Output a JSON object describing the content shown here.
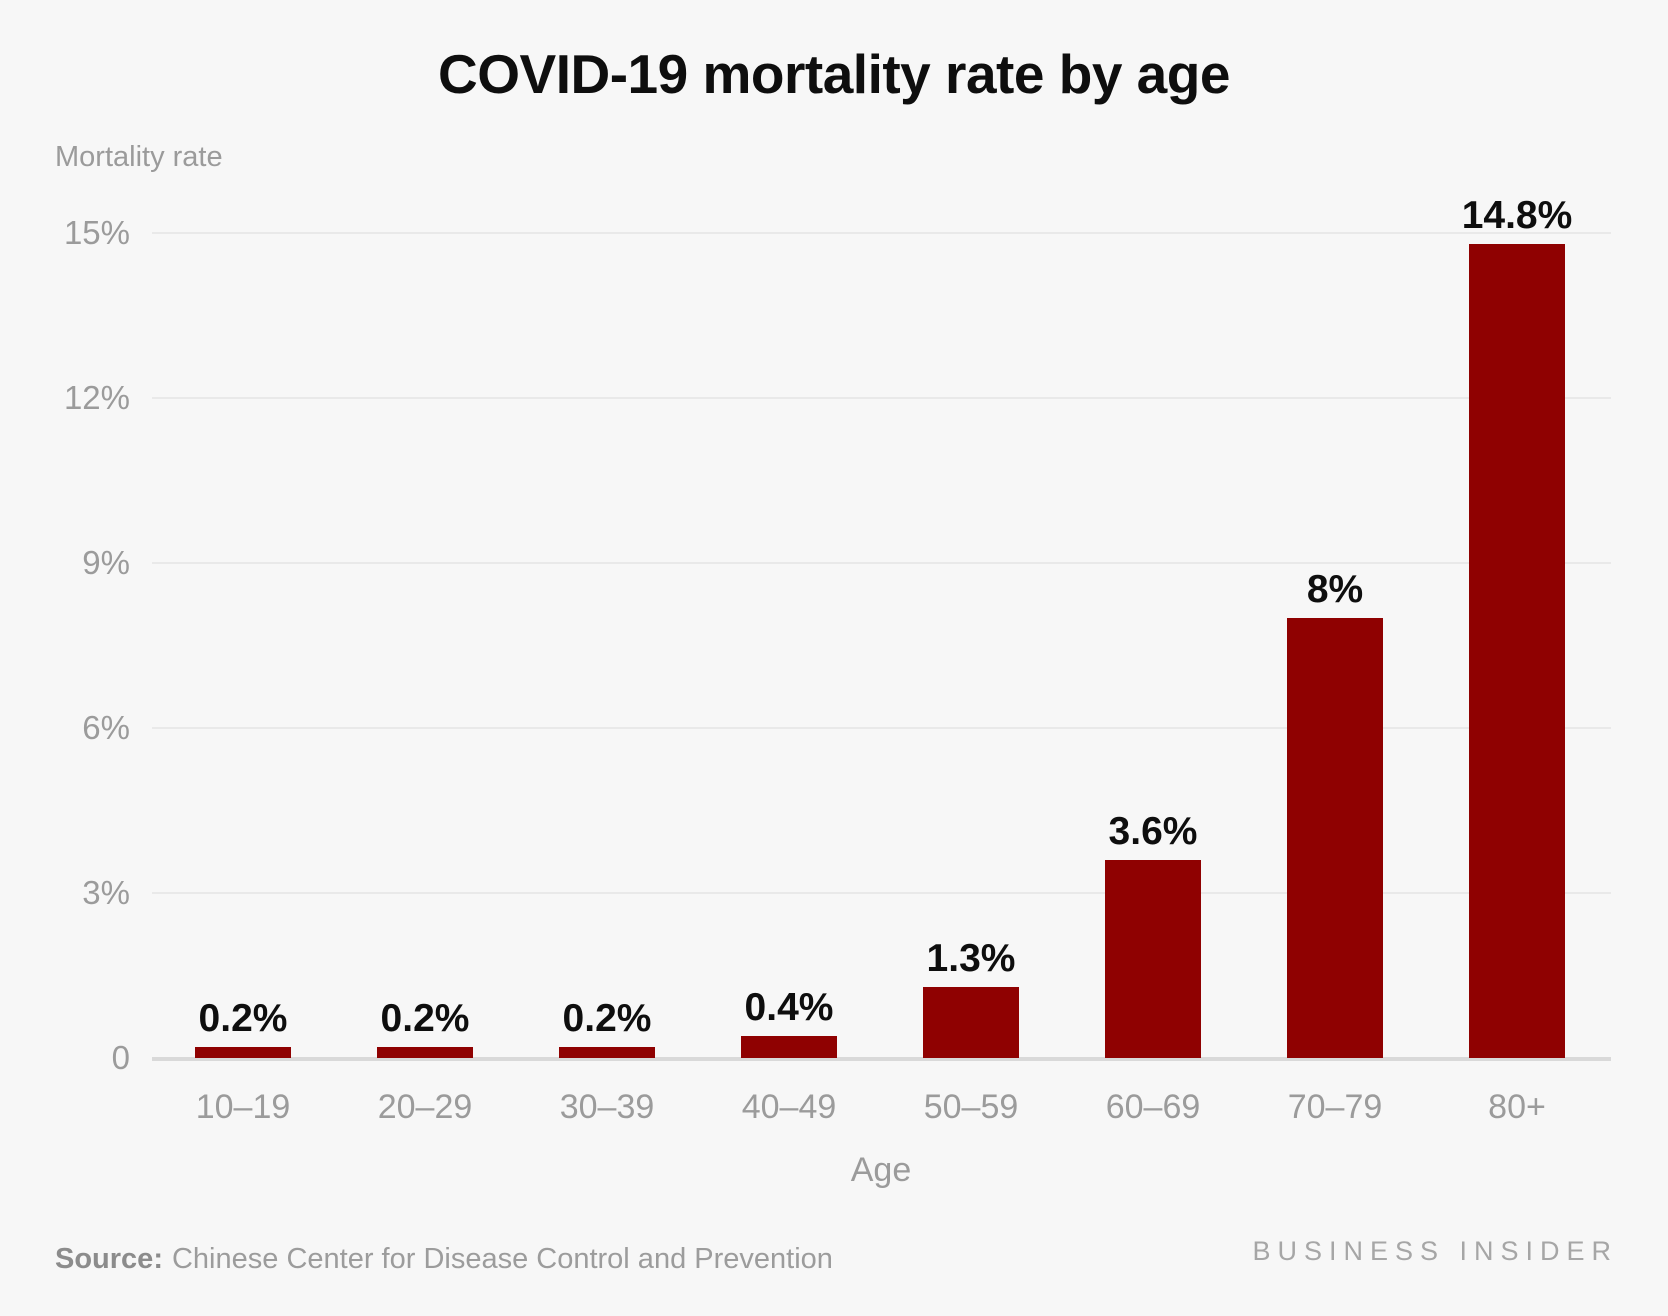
{
  "title": "COVID-19 mortality rate by age",
  "chart_data": {
    "type": "bar",
    "title": "COVID-19 mortality rate by age",
    "categories": [
      "10–19",
      "20–29",
      "30–39",
      "40–49",
      "50–59",
      "60–69",
      "70–79",
      "80+"
    ],
    "values": [
      0.2,
      0.2,
      0.2,
      0.4,
      1.3,
      3.6,
      8,
      14.8
    ],
    "value_labels": [
      "0.2%",
      "0.2%",
      "0.2%",
      "0.4%",
      "1.3%",
      "3.6%",
      "8%",
      "14.8%"
    ],
    "xlabel": "Age",
    "ylabel": "Mortality rate",
    "ylim": [
      0,
      15
    ],
    "yticks": [
      0,
      3,
      6,
      9,
      12,
      15
    ],
    "ytick_labels": [
      "0",
      "3%",
      "6%",
      "9%",
      "12%",
      "15%"
    ],
    "grid": "horizontal",
    "legend": "none",
    "bar_color": "#8f0101",
    "background_color": "#f7f7f7",
    "gridline_color": "#e9e9e9",
    "axis_text_color": "#9b9b9b"
  },
  "footer": {
    "source_label": "Source:",
    "source_text": "Chinese Center for Disease Control and Prevention",
    "brand": "BUSINESS INSIDER"
  }
}
